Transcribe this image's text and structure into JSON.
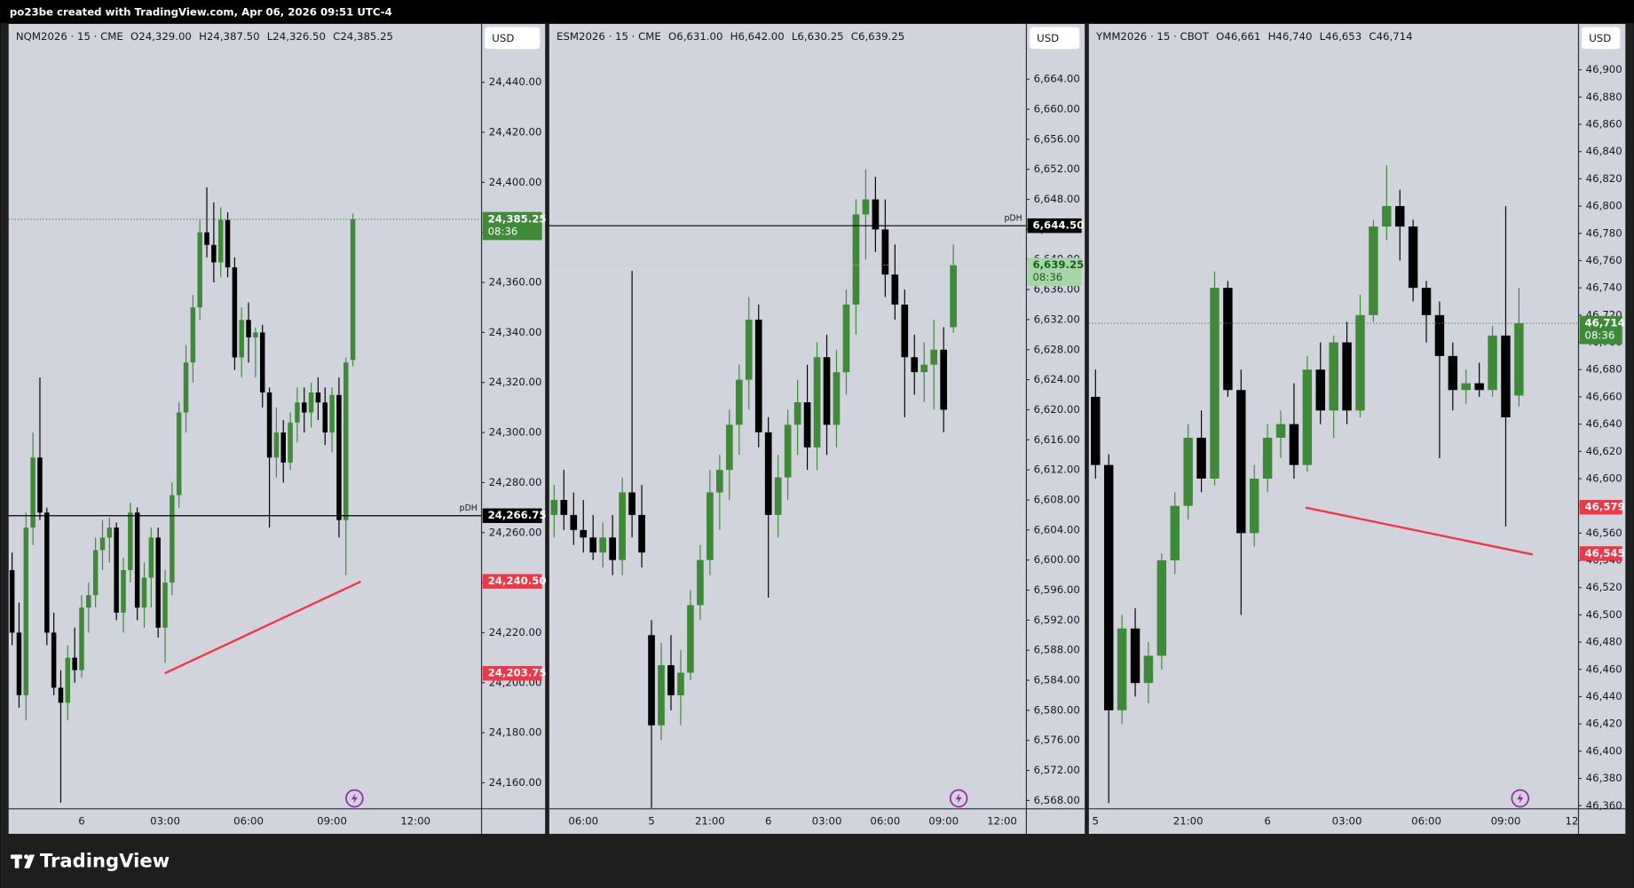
{
  "header": {
    "text": "po23be created with TradingView.com, Apr 06, 2026 09:51 UTC-4"
  },
  "footer": {
    "logo": "TradingView"
  },
  "chart_data": [
    {
      "type": "candlestick",
      "title": "NQM2026 · 15 · CME",
      "ohlc": [
        "O24,329.00",
        "H24,387.50",
        "L24,326.50",
        "C24,385.25"
      ],
      "currency": "USD",
      "up_color": "#3d8b37",
      "down_color": "#000000",
      "ylim": [
        24149.6,
        24463.3
      ],
      "yticks": [
        {
          "value": 24160,
          "label": "24,160.00"
        },
        {
          "value": 24180,
          "label": "24,180.00"
        },
        {
          "value": 24200,
          "label": "24,200.00"
        },
        {
          "value": 24220,
          "label": "24,220.00"
        },
        {
          "value": 24240,
          "label": "24,240.00"
        },
        {
          "value": 24260,
          "label": "24,260.00"
        },
        {
          "value": 24280,
          "label": "24,280.00"
        },
        {
          "value": 24300,
          "label": "24,300.00"
        },
        {
          "value": 24320,
          "label": "24,320.00"
        },
        {
          "value": 24340,
          "label": "24,340.00"
        },
        {
          "value": 24360,
          "label": "24,360.00"
        },
        {
          "value": 24380,
          "label": "24,380.00"
        },
        {
          "value": 24400,
          "label": "24,400.00"
        },
        {
          "value": 24420,
          "label": "24,420.00"
        },
        {
          "value": 24440,
          "label": "24,440.00"
        }
      ],
      "categories": [
        null,
        null,
        null,
        null,
        null,
        null,
        null,
        null,
        null,
        null,
        "6",
        null,
        null,
        null,
        null,
        null,
        null,
        null,
        null,
        null,
        null,
        null,
        "03:00",
        null,
        null,
        null,
        null,
        null,
        null,
        null,
        null,
        null,
        null,
        null,
        "06:00",
        null,
        null,
        null,
        null,
        null,
        null,
        null,
        null,
        null,
        null,
        null,
        "09:00",
        null,
        null,
        null,
        null,
        null,
        null,
        null,
        null,
        null,
        null,
        null,
        "12:00",
        null,
        null,
        null,
        null,
        null,
        null,
        null,
        null,
        null
      ],
      "open": [
        24245,
        24220,
        24195,
        24262,
        24290,
        24268,
        24220,
        24198,
        24192,
        24210,
        24205,
        24230,
        24235,
        24253,
        24258,
        24262,
        24228,
        24245,
        24268,
        24230,
        24242,
        24258,
        24222,
        24240,
        24275,
        24308,
        24328,
        24350,
        24380,
        24375,
        24368,
        24385,
        24366,
        24330,
        24345,
        24338,
        24340,
        24316,
        24290,
        24300,
        24288,
        24304,
        24312,
        24308,
        24316,
        24312,
        24300,
        24315,
        24265,
        24329,
        null,
        null,
        null,
        null,
        null,
        null,
        null,
        null,
        null,
        null,
        null,
        null,
        null,
        null,
        null,
        null,
        null,
        null
      ],
      "high": [
        24252,
        24232,
        24268,
        24300,
        24322,
        24270,
        24228,
        24205,
        24215,
        24222,
        24235,
        24240,
        24258,
        24265,
        24266,
        24264,
        24250,
        24272,
        24270,
        24248,
        24262,
        24262,
        24245,
        24280,
        24312,
        24335,
        24355,
        24385,
        24398,
        24392,
        24390,
        24388,
        24370,
        24350,
        24352,
        24342,
        24343,
        24318,
        24310,
        24305,
        24308,
        24318,
        24318,
        24320,
        24322,
        24318,
        24318,
        24322,
        24330,
        24387.5,
        null,
        null,
        null,
        null,
        null,
        null,
        null,
        null,
        null,
        null,
        null,
        null,
        null,
        null,
        null,
        null,
        null,
        null
      ],
      "low": [
        24215,
        24190,
        24185,
        24255,
        24265,
        24215,
        24195,
        24152,
        24185,
        24200,
        24202,
        24220,
        24230,
        24245,
        24248,
        24225,
        24220,
        24240,
        24225,
        24222,
        24230,
        24218,
        24208,
        24235,
        24270,
        24300,
        24320,
        24345,
        24370,
        24360,
        24362,
        24362,
        24325,
        24322,
        24328,
        24322,
        24310,
        24262,
        24282,
        24280,
        24285,
        24296,
        24300,
        24302,
        24305,
        24295,
        24292,
        24258,
        24243,
        24326.5,
        null,
        null,
        null,
        null,
        null,
        null,
        null,
        null,
        null,
        null,
        null,
        null,
        null,
        null,
        null,
        null,
        null,
        null
      ],
      "close": [
        24220,
        24195,
        24262,
        24290,
        24268,
        24220,
        24198,
        24192,
        24210,
        24205,
        24230,
        24235,
        24253,
        24258,
        24262,
        24228,
        24245,
        24268,
        24230,
        24242,
        24258,
        24222,
        24240,
        24275,
        24308,
        24328,
        24350,
        24380,
        24375,
        24368,
        24385,
        24366,
        24330,
        24345,
        24338,
        24340,
        24316,
        24290,
        24300,
        24288,
        24304,
        24312,
        24308,
        24316,
        24312,
        24300,
        24315,
        24265,
        24328,
        24385.25,
        null,
        null,
        null,
        null,
        null,
        null,
        null,
        null,
        null,
        null,
        null,
        null,
        null,
        null,
        null,
        null,
        null,
        null
      ],
      "last_price": {
        "value": 24385.25,
        "label": "24,385.25",
        "countdown": "08:36",
        "color": "#3d8b37",
        "text_color": "#ffffff"
      },
      "price_lines": [
        {
          "name": "pDH",
          "value": 24266.75,
          "label": "24,266.75"
        }
      ],
      "alert_color": "#f23645",
      "alerts": [
        {
          "value": 24240.5,
          "label": "24,240.50"
        },
        {
          "value": 24203.75,
          "label": "24,203.75"
        }
      ]
    },
    {
      "type": "candlestick",
      "title": "ESM2026 · 15 · CME",
      "ohlc": [
        "O6,631.00",
        "H6,642.00",
        "L6,630.25",
        "C6,639.25"
      ],
      "currency": "USD",
      "up_color": "#3d8b37",
      "down_color": "#000000",
      "ylim": [
        6566.89,
        6671.35
      ],
      "yticks": [
        {
          "value": 6568,
          "label": "6,568.00"
        },
        {
          "value": 6572,
          "label": "6,572.00"
        },
        {
          "value": 6576,
          "label": "6,576.00"
        },
        {
          "value": 6580,
          "label": "6,580.00"
        },
        {
          "value": 6584,
          "label": "6,584.00"
        },
        {
          "value": 6588,
          "label": "6,588.00"
        },
        {
          "value": 6592,
          "label": "6,592.00"
        },
        {
          "value": 6596,
          "label": "6,596.00"
        },
        {
          "value": 6600,
          "label": "6,600.00"
        },
        {
          "value": 6604,
          "label": "6,604.00"
        },
        {
          "value": 6608,
          "label": "6,608.00"
        },
        {
          "value": 6612,
          "label": "6,612.00"
        },
        {
          "value": 6616,
          "label": "6,616.00"
        },
        {
          "value": 6620,
          "label": "6,620.00"
        },
        {
          "value": 6624,
          "label": "6,624.00"
        },
        {
          "value": 6628,
          "label": "6,628.00"
        },
        {
          "value": 6632,
          "label": "6,632.00"
        },
        {
          "value": 6636,
          "label": "6,636.00"
        },
        {
          "value": 6640,
          "label": "6,640.00"
        },
        {
          "value": 6644,
          "label": "6,644.00"
        },
        {
          "value": 6648,
          "label": "6,648.00"
        },
        {
          "value": 6652,
          "label": "6,652.00"
        },
        {
          "value": 6656,
          "label": "6,656.00"
        },
        {
          "value": 6660,
          "label": "6,660.00"
        },
        {
          "value": 6664,
          "label": "6,664.00"
        }
      ],
      "categories": [
        null,
        null,
        null,
        "06:00",
        null,
        null,
        null,
        null,
        null,
        null,
        "5",
        null,
        null,
        null,
        null,
        null,
        "21:00",
        null,
        null,
        null,
        null,
        null,
        "6",
        null,
        null,
        null,
        null,
        null,
        "03:00",
        null,
        null,
        null,
        null,
        null,
        "06:00",
        null,
        null,
        null,
        null,
        null,
        "09:00",
        null,
        null,
        null,
        null,
        null,
        "12:00",
        null,
        null
      ],
      "open": [
        6606,
        6608,
        6606,
        6604,
        6603,
        6601,
        6603,
        6600,
        6609,
        6606,
        6590,
        6578,
        6586,
        6582,
        6585,
        6594,
        6600,
        6609,
        6612,
        6618,
        6624,
        6632,
        6617,
        6606,
        6611,
        6618,
        6621,
        6615,
        6627,
        6618,
        6625,
        6634,
        6646,
        6648,
        6644,
        6638,
        6634,
        6627,
        6625,
        6626,
        6628,
        6631,
        null,
        null,
        null,
        null,
        null,
        null,
        null
      ],
      "high": [
        6610,
        6612,
        6609,
        6608,
        6606,
        6605,
        6606,
        6611,
        6638.5,
        6610,
        6592,
        6589,
        6590,
        6588,
        6596,
        6602,
        6612,
        6614,
        6620,
        6626,
        6635,
        6634,
        6619,
        6614,
        6620,
        6624,
        6626,
        6629,
        6630,
        6628,
        6636,
        6648,
        6652,
        6651,
        6648,
        6642,
        6636,
        6630,
        6629,
        6632,
        6631,
        6642,
        null,
        null,
        null,
        null,
        null,
        null,
        null
      ],
      "low": [
        6603,
        6604,
        6602,
        6601,
        6600,
        6599,
        6598,
        6598,
        6603,
        6599,
        6567,
        6576,
        6580,
        6578,
        6584,
        6592,
        6598,
        6604,
        6608,
        6614,
        6620,
        6615,
        6595,
        6603,
        6608,
        6614,
        6612,
        6612,
        6614,
        6615,
        6622,
        6630,
        6640,
        6641,
        6635,
        6632,
        6619,
        6622,
        6621,
        6620,
        6617,
        6630.25,
        null,
        null,
        null,
        null,
        null,
        null,
        null
      ],
      "close": [
        6608,
        6606,
        6604,
        6603,
        6601,
        6603,
        6600,
        6609,
        6606,
        6601,
        6578,
        6586,
        6582,
        6585,
        6594,
        6600,
        6609,
        6612,
        6618,
        6624,
        6632,
        6617,
        6606,
        6611,
        6618,
        6621,
        6615,
        6627,
        6618,
        6625,
        6634,
        6646,
        6648,
        6644,
        6638,
        6634,
        6627,
        6625,
        6626,
        6628,
        6620,
        6639.25,
        null,
        null,
        null,
        null,
        null,
        null,
        null
      ],
      "last_price": {
        "value": 6639.25,
        "label": "6,639.25",
        "countdown": "08:36",
        "color": "#a5d6a7",
        "text_color": "#1b5e20"
      },
      "price_lines": [
        {
          "name": "pDH",
          "value": 6644.5,
          "label": "6,644.50"
        }
      ],
      "alert_color": "#f23645",
      "alerts": []
    },
    {
      "type": "candlestick",
      "title": "YMM2026 · 15 · CBOT",
      "ohlc": [
        "O46,661",
        "H46,740",
        "L46,653",
        "C46,714"
      ],
      "currency": "USD",
      "up_color": "#3d8b37",
      "down_color": "#000000",
      "ylim": [
        46357.7,
        46933.65
      ],
      "yticks": [
        {
          "value": 46360,
          "label": "46,360"
        },
        {
          "value": 46380,
          "label": "46,380"
        },
        {
          "value": 46400,
          "label": "46,400"
        },
        {
          "value": 46420,
          "label": "46,420"
        },
        {
          "value": 46440,
          "label": "46,440"
        },
        {
          "value": 46460,
          "label": "46,460"
        },
        {
          "value": 46480,
          "label": "46,480"
        },
        {
          "value": 46500,
          "label": "46,500"
        },
        {
          "value": 46520,
          "label": "46,520"
        },
        {
          "value": 46540,
          "label": "46,540"
        },
        {
          "value": 46560,
          "label": "46,560"
        },
        {
          "value": 46580,
          "label": "46,580"
        },
        {
          "value": 46600,
          "label": "46,600"
        },
        {
          "value": 46620,
          "label": "46,620"
        },
        {
          "value": 46640,
          "label": "46,640"
        },
        {
          "value": 46660,
          "label": "46,660"
        },
        {
          "value": 46680,
          "label": "46,680"
        },
        {
          "value": 46700,
          "label": "46,700"
        },
        {
          "value": 46720,
          "label": "46,720"
        },
        {
          "value": 46740,
          "label": "46,740"
        },
        {
          "value": 46760,
          "label": "46,760"
        },
        {
          "value": 46780,
          "label": "46,780"
        },
        {
          "value": 46800,
          "label": "46,800"
        },
        {
          "value": 46820,
          "label": "46,820"
        },
        {
          "value": 46840,
          "label": "46,840"
        },
        {
          "value": 46860,
          "label": "46,860"
        },
        {
          "value": 46880,
          "label": "46,880"
        },
        {
          "value": 46900,
          "label": "46,900"
        }
      ],
      "categories": [
        "5",
        null,
        null,
        null,
        null,
        null,
        null,
        "21:00",
        null,
        null,
        null,
        null,
        null,
        "6",
        null,
        null,
        null,
        null,
        null,
        "03:00",
        null,
        null,
        null,
        null,
        null,
        "06:00",
        null,
        null,
        null,
        null,
        null,
        "09:00",
        null,
        null,
        null,
        null,
        "12"
      ],
      "open": [
        46660,
        46610,
        46430,
        46490,
        46450,
        46470,
        46540,
        46580,
        46630,
        46600,
        46740,
        46665,
        46560,
        46600,
        46630,
        46640,
        46610,
        46680,
        46650,
        46700,
        46650,
        46720,
        46785,
        46800,
        46785,
        46740,
        46720,
        46690,
        46665,
        46670,
        46665,
        46705,
        46661,
        null,
        null,
        null,
        null
      ],
      "high": [
        46680,
        46618,
        46500,
        46505,
        46480,
        46545,
        46590,
        46640,
        46650,
        46752,
        46745,
        46680,
        46610,
        46640,
        46650,
        46670,
        46690,
        46700,
        46705,
        46715,
        46735,
        46790,
        46830,
        46812,
        46790,
        46745,
        46730,
        46700,
        46680,
        46685,
        46712,
        46800,
        46740,
        null,
        null,
        null,
        null
      ],
      "low": [
        46600,
        46362,
        46420,
        46440,
        46435,
        46460,
        46530,
        46570,
        46590,
        46595,
        46660,
        46500,
        46550,
        46590,
        46615,
        46600,
        46605,
        46640,
        46630,
        46640,
        46645,
        46715,
        46775,
        46760,
        46730,
        46700,
        46615,
        46650,
        46655,
        46660,
        46660,
        46565,
        46653,
        null,
        null,
        null,
        null
      ],
      "close": [
        46610,
        46430,
        46490,
        46450,
        46470,
        46540,
        46580,
        46630,
        46600,
        46740,
        46665,
        46560,
        46600,
        46630,
        46640,
        46610,
        46680,
        46650,
        46700,
        46650,
        46720,
        46785,
        46800,
        46785,
        46740,
        46720,
        46690,
        46665,
        46670,
        46665,
        46705,
        46645,
        46714,
        null,
        null,
        null,
        null
      ],
      "last_price": {
        "value": 46714,
        "label": "46,714",
        "countdown": "08:36",
        "color": "#3d8b37",
        "text_color": "#ffffff"
      },
      "price_lines": [],
      "alert_color": "#f23645",
      "alerts": [
        {
          "value": 46579,
          "label": "46,579"
        },
        {
          "value": 46545,
          "label": "46,545"
        }
      ]
    }
  ]
}
